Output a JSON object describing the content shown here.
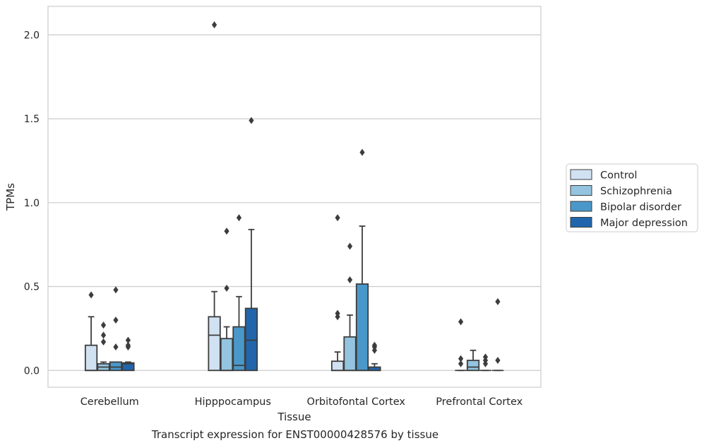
{
  "chart_data": {
    "type": "boxplot",
    "ylabel": "TPMs",
    "xlabel": "Tissue",
    "caption": "Transcript expression for ENST00000428576 by tissue",
    "ylim": [
      -0.1,
      2.17
    ],
    "yticks": [
      "0.0",
      "0.5",
      "1.0",
      "1.5",
      "2.0"
    ],
    "categories": [
      "Cerebellum",
      "Hipppocampus",
      "Orbitofontal Cortex",
      "Prefrontal Cortex"
    ],
    "grid": true,
    "legend_position": "right",
    "series": [
      {
        "name": "Control",
        "color": "#d0e1f2",
        "boxes": [
          {
            "q1": 0.0,
            "median": 0.0,
            "q3": 0.15,
            "wlow": 0.0,
            "whigh": 0.32,
            "outliers": [
              0.45
            ]
          },
          {
            "q1": 0.0,
            "median": 0.21,
            "q3": 0.32,
            "wlow": 0.0,
            "whigh": 0.47,
            "outliers": [
              2.06
            ]
          },
          {
            "q1": 0.0,
            "median": 0.0,
            "q3": 0.055,
            "wlow": 0.0,
            "whigh": 0.11,
            "outliers": [
              0.32,
              0.34,
              0.91
            ]
          },
          {
            "q1": 0.0,
            "median": 0.0,
            "q3": 0.0,
            "wlow": 0.0,
            "whigh": 0.0,
            "outliers": [
              0.04,
              0.07,
              0.29
            ]
          }
        ]
      },
      {
        "name": "Schizophrenia",
        "color": "#94c4df",
        "boxes": [
          {
            "q1": 0.0,
            "median": 0.02,
            "q3": 0.04,
            "wlow": 0.0,
            "whigh": 0.05,
            "outliers": [
              0.17,
              0.21,
              0.27
            ]
          },
          {
            "q1": 0.0,
            "median": 0.0,
            "q3": 0.19,
            "wlow": 0.0,
            "whigh": 0.26,
            "outliers": [
              0.49,
              0.83
            ]
          },
          {
            "q1": 0.0,
            "median": 0.0,
            "q3": 0.2,
            "wlow": 0.0,
            "whigh": 0.33,
            "outliers": [
              0.54,
              0.74
            ]
          },
          {
            "q1": 0.0,
            "median": 0.02,
            "q3": 0.06,
            "wlow": 0.0,
            "whigh": 0.12,
            "outliers": []
          }
        ]
      },
      {
        "name": "Bipolar disorder",
        "color": "#4a98c9",
        "boxes": [
          {
            "q1": 0.0,
            "median": 0.02,
            "q3": 0.05,
            "wlow": 0.0,
            "whigh": 0.05,
            "outliers": [
              0.14,
              0.3,
              0.48
            ]
          },
          {
            "q1": 0.0,
            "median": 0.03,
            "q3": 0.26,
            "wlow": 0.0,
            "whigh": 0.44,
            "outliers": [
              0.91
            ]
          },
          {
            "q1": 0.0,
            "median": 0.0,
            "q3": 0.515,
            "wlow": 0.0,
            "whigh": 0.86,
            "outliers": [
              1.3
            ]
          },
          {
            "q1": 0.0,
            "median": 0.0,
            "q3": 0.0,
            "wlow": 0.0,
            "whigh": 0.0,
            "outliers": [
              0.04,
              0.06,
              0.08
            ]
          }
        ]
      },
      {
        "name": "Major depression",
        "color": "#2166ac",
        "boxes": [
          {
            "q1": 0.0,
            "median": 0.04,
            "q3": 0.045,
            "wlow": 0.0,
            "whigh": 0.05,
            "outliers": [
              0.14,
              0.15,
              0.18
            ]
          },
          {
            "q1": 0.0,
            "median": 0.18,
            "q3": 0.37,
            "wlow": 0.0,
            "whigh": 0.84,
            "outliers": [
              1.49
            ]
          },
          {
            "q1": 0.0,
            "median": 0.0,
            "q3": 0.02,
            "wlow": 0.0,
            "whigh": 0.04,
            "outliers": [
              0.12,
              0.14,
              0.15
            ]
          },
          {
            "q1": 0.0,
            "median": 0.0,
            "q3": 0.0,
            "wlow": 0.0,
            "whigh": 0.0,
            "outliers": [
              0.06,
              0.41
            ]
          }
        ]
      }
    ]
  }
}
